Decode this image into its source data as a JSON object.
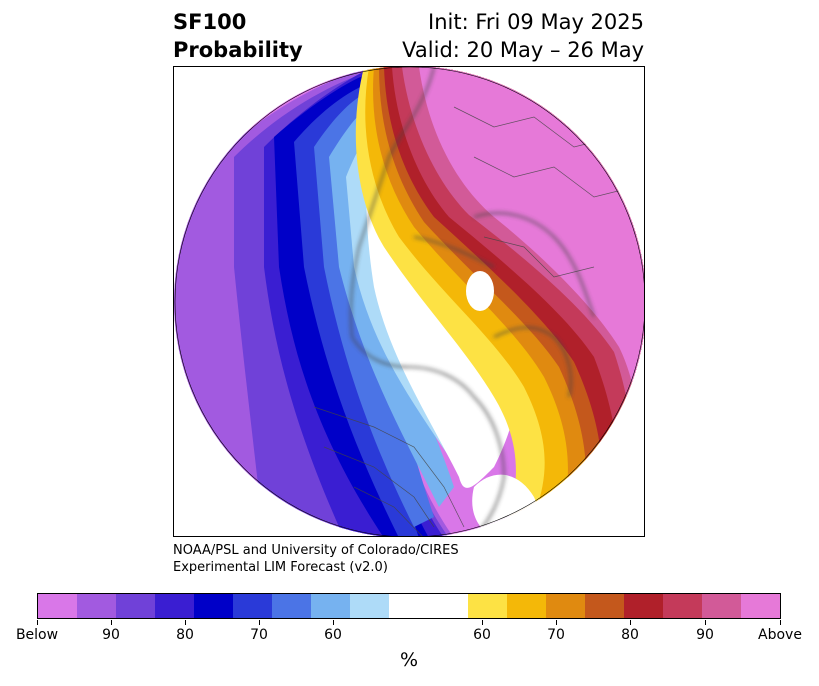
{
  "header": {
    "title_line1": "SF100",
    "title_line2": "Probability",
    "init_text": "Init: Fri 09 May 2025",
    "valid_text": "Valid: 20 May – 26 May"
  },
  "credit": {
    "line1": "NOAA/PSL and University of Colorado/CIRES",
    "line2": "Experimental LIM Forecast (v2.0)"
  },
  "colorbar": {
    "colors": [
      "#d977e8",
      "#a25ae0",
      "#7041d8",
      "#3a1ed2",
      "#0000c8",
      "#2a3ad8",
      "#4b74e6",
      "#76b2f0",
      "#aedbf8",
      "#ffffff",
      "#ffffff",
      "#fde244",
      "#f4b808",
      "#e08a10",
      "#c4581c",
      "#b0202a",
      "#c43a5a",
      "#d25a98",
      "#e679d8"
    ],
    "tick_labels": [
      "Below",
      "90",
      "80",
      "70",
      "60",
      "60",
      "70",
      "80",
      "90",
      "Above"
    ],
    "unit_label": "%"
  },
  "map": {
    "projection": "north-polar-stereographic",
    "colors": {
      "coast": "#444444",
      "above_max": "#e679d8",
      "below_max": "#d977e8"
    }
  }
}
